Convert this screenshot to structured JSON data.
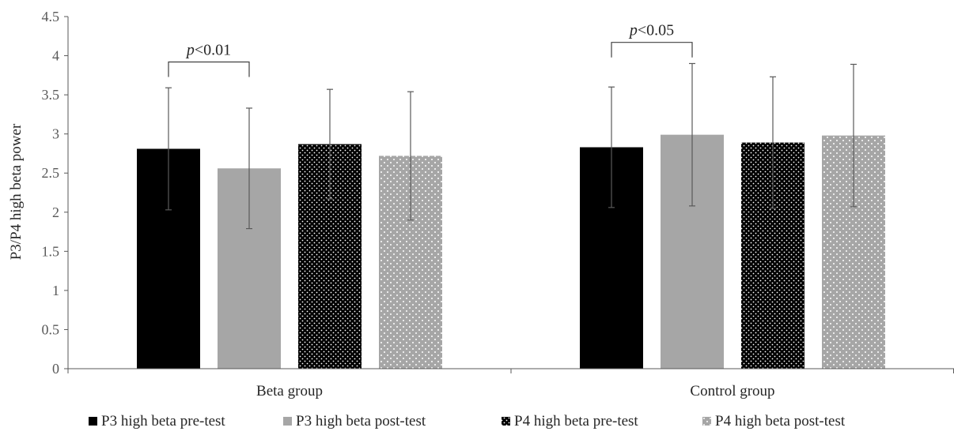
{
  "chart_data": {
    "type": "bar",
    "ylabel": "P3/P4 high beta power",
    "ylim": [
      0,
      4.5
    ],
    "ytick_step": 0.5,
    "yticks": [
      "0",
      "0.5",
      "1",
      "1.5",
      "2",
      "2.5",
      "3",
      "3.5",
      "4",
      "4.5"
    ],
    "categories": [
      "Beta group",
      "Control group"
    ],
    "legend_position": "bottom",
    "series": [
      {
        "name": "P3 high beta pre-test",
        "values": [
          2.81,
          2.83
        ],
        "errors": [
          0.78,
          0.77
        ],
        "color": "#000000",
        "pattern": "solid"
      },
      {
        "name": "P3 high beta post-test",
        "values": [
          2.56,
          2.99
        ],
        "errors": [
          0.77,
          0.91
        ],
        "color": "#a6a6a6",
        "pattern": "solid"
      },
      {
        "name": "P4 high beta pre-test",
        "values": [
          2.87,
          2.89
        ],
        "errors": [
          0.7,
          0.84
        ],
        "color": "#000000",
        "pattern": "dots-light"
      },
      {
        "name": "P4 high beta post-test",
        "values": [
          2.72,
          2.98
        ],
        "errors": [
          0.82,
          0.91
        ],
        "color": "#a6a6a6",
        "pattern": "dots-light"
      }
    ],
    "annotations": [
      {
        "prefix": "p",
        "text": "<0.01",
        "category": 0,
        "from_series": 0,
        "to_series": 1,
        "y": 3.92
      },
      {
        "prefix": "p",
        "text": "<0.05",
        "category": 1,
        "from_series": 0,
        "to_series": 1,
        "y": 4.17
      }
    ]
  }
}
